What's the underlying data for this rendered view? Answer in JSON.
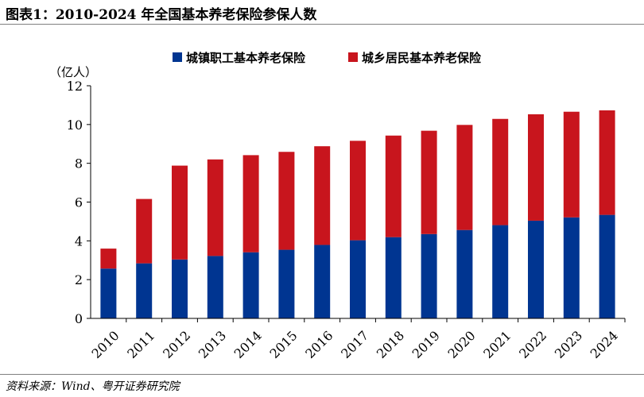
{
  "figure": {
    "title": "图表1：2010-2024 年全国基本养老保险参保人数",
    "source": "资料来源：Wind、粤开证券研究院"
  },
  "colors": {
    "series_urban_employee": "#003591",
    "series_urban_rural_resident": "#c8151d",
    "axis": "#000000"
  },
  "chart_data": {
    "type": "bar",
    "stacked": true,
    "y_unit_label": "（亿人）",
    "ylim": [
      0,
      12
    ],
    "yticks": [
      0,
      2,
      4,
      6,
      8,
      10,
      12
    ],
    "categories": [
      "2010",
      "2011",
      "2012",
      "2013",
      "2014",
      "2015",
      "2016",
      "2017",
      "2018",
      "2019",
      "2020",
      "2021",
      "2022",
      "2023",
      "2024"
    ],
    "series": [
      {
        "name": "城镇职工基本养老保险",
        "color": "#003591",
        "values": [
          2.57,
          2.84,
          3.04,
          3.22,
          3.41,
          3.54,
          3.79,
          4.03,
          4.19,
          4.35,
          4.56,
          4.81,
          5.04,
          5.21,
          5.34
        ]
      },
      {
        "name": "城乡居民基本养老保险",
        "color": "#c8151d",
        "values": [
          1.03,
          3.32,
          4.84,
          4.98,
          5.01,
          5.05,
          5.09,
          5.13,
          5.24,
          5.33,
          5.42,
          5.48,
          5.49,
          5.45,
          5.39
        ]
      }
    ],
    "legend_position": "top-center",
    "grid": false
  }
}
